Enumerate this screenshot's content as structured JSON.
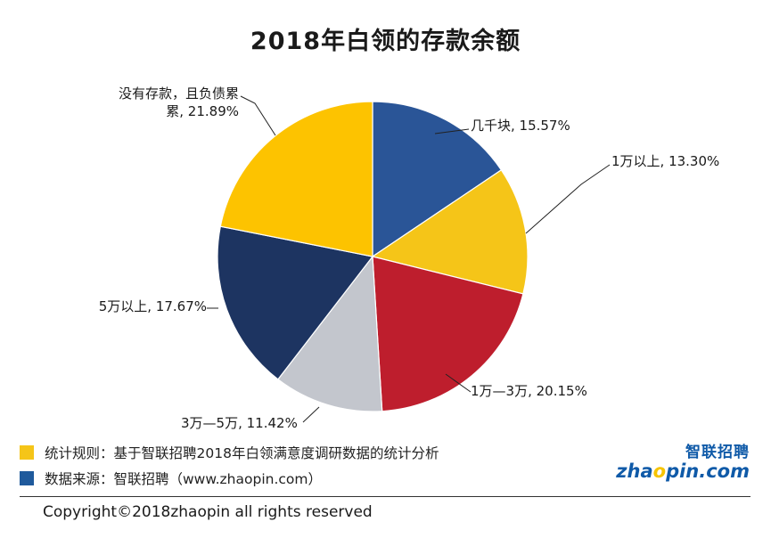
{
  "title": "2018年白领的存款余额",
  "chart_data": {
    "type": "pie",
    "title": "2018年白领的存款余额",
    "slices": [
      {
        "label": "几千块",
        "value": 15.57,
        "display": "几千块, 15.57%",
        "color": "#2a5597"
      },
      {
        "label": "1万以上",
        "value": 13.3,
        "display": "1万以上, 13.30%",
        "color": "#f5c518"
      },
      {
        "label": "1万—3万",
        "value": 20.15,
        "display": "1万—3万, 20.15%",
        "color": "#be1e2d"
      },
      {
        "label": "3万—5万",
        "value": 11.42,
        "display": "3万—5万, 11.42%",
        "color": "#c3c6cd"
      },
      {
        "label": "5万以上",
        "value": 17.67,
        "display": "5万以上, 17.67%",
        "color": "#1d3461"
      },
      {
        "label": "没有存款，且负债累累",
        "value": 21.89,
        "display_lines": [
          "没有存款，且负债累",
          "累, 21.89%"
        ],
        "color": "#fdc300"
      }
    ]
  },
  "notes": [
    {
      "text": "统计规则：基于智联招聘2018年白领满意度调研数据的统计分析",
      "color": "#f5c518"
    },
    {
      "text": "数据来源：智联招聘（www.zhaopin.com）",
      "color": "#1f5a9c"
    }
  ],
  "brand": {
    "cn": "智联招聘",
    "en_pre": "zha",
    "en_o": "o",
    "en_post": "pin.com"
  },
  "copyright": "Copyright©2018zhaopin all rights reserved"
}
